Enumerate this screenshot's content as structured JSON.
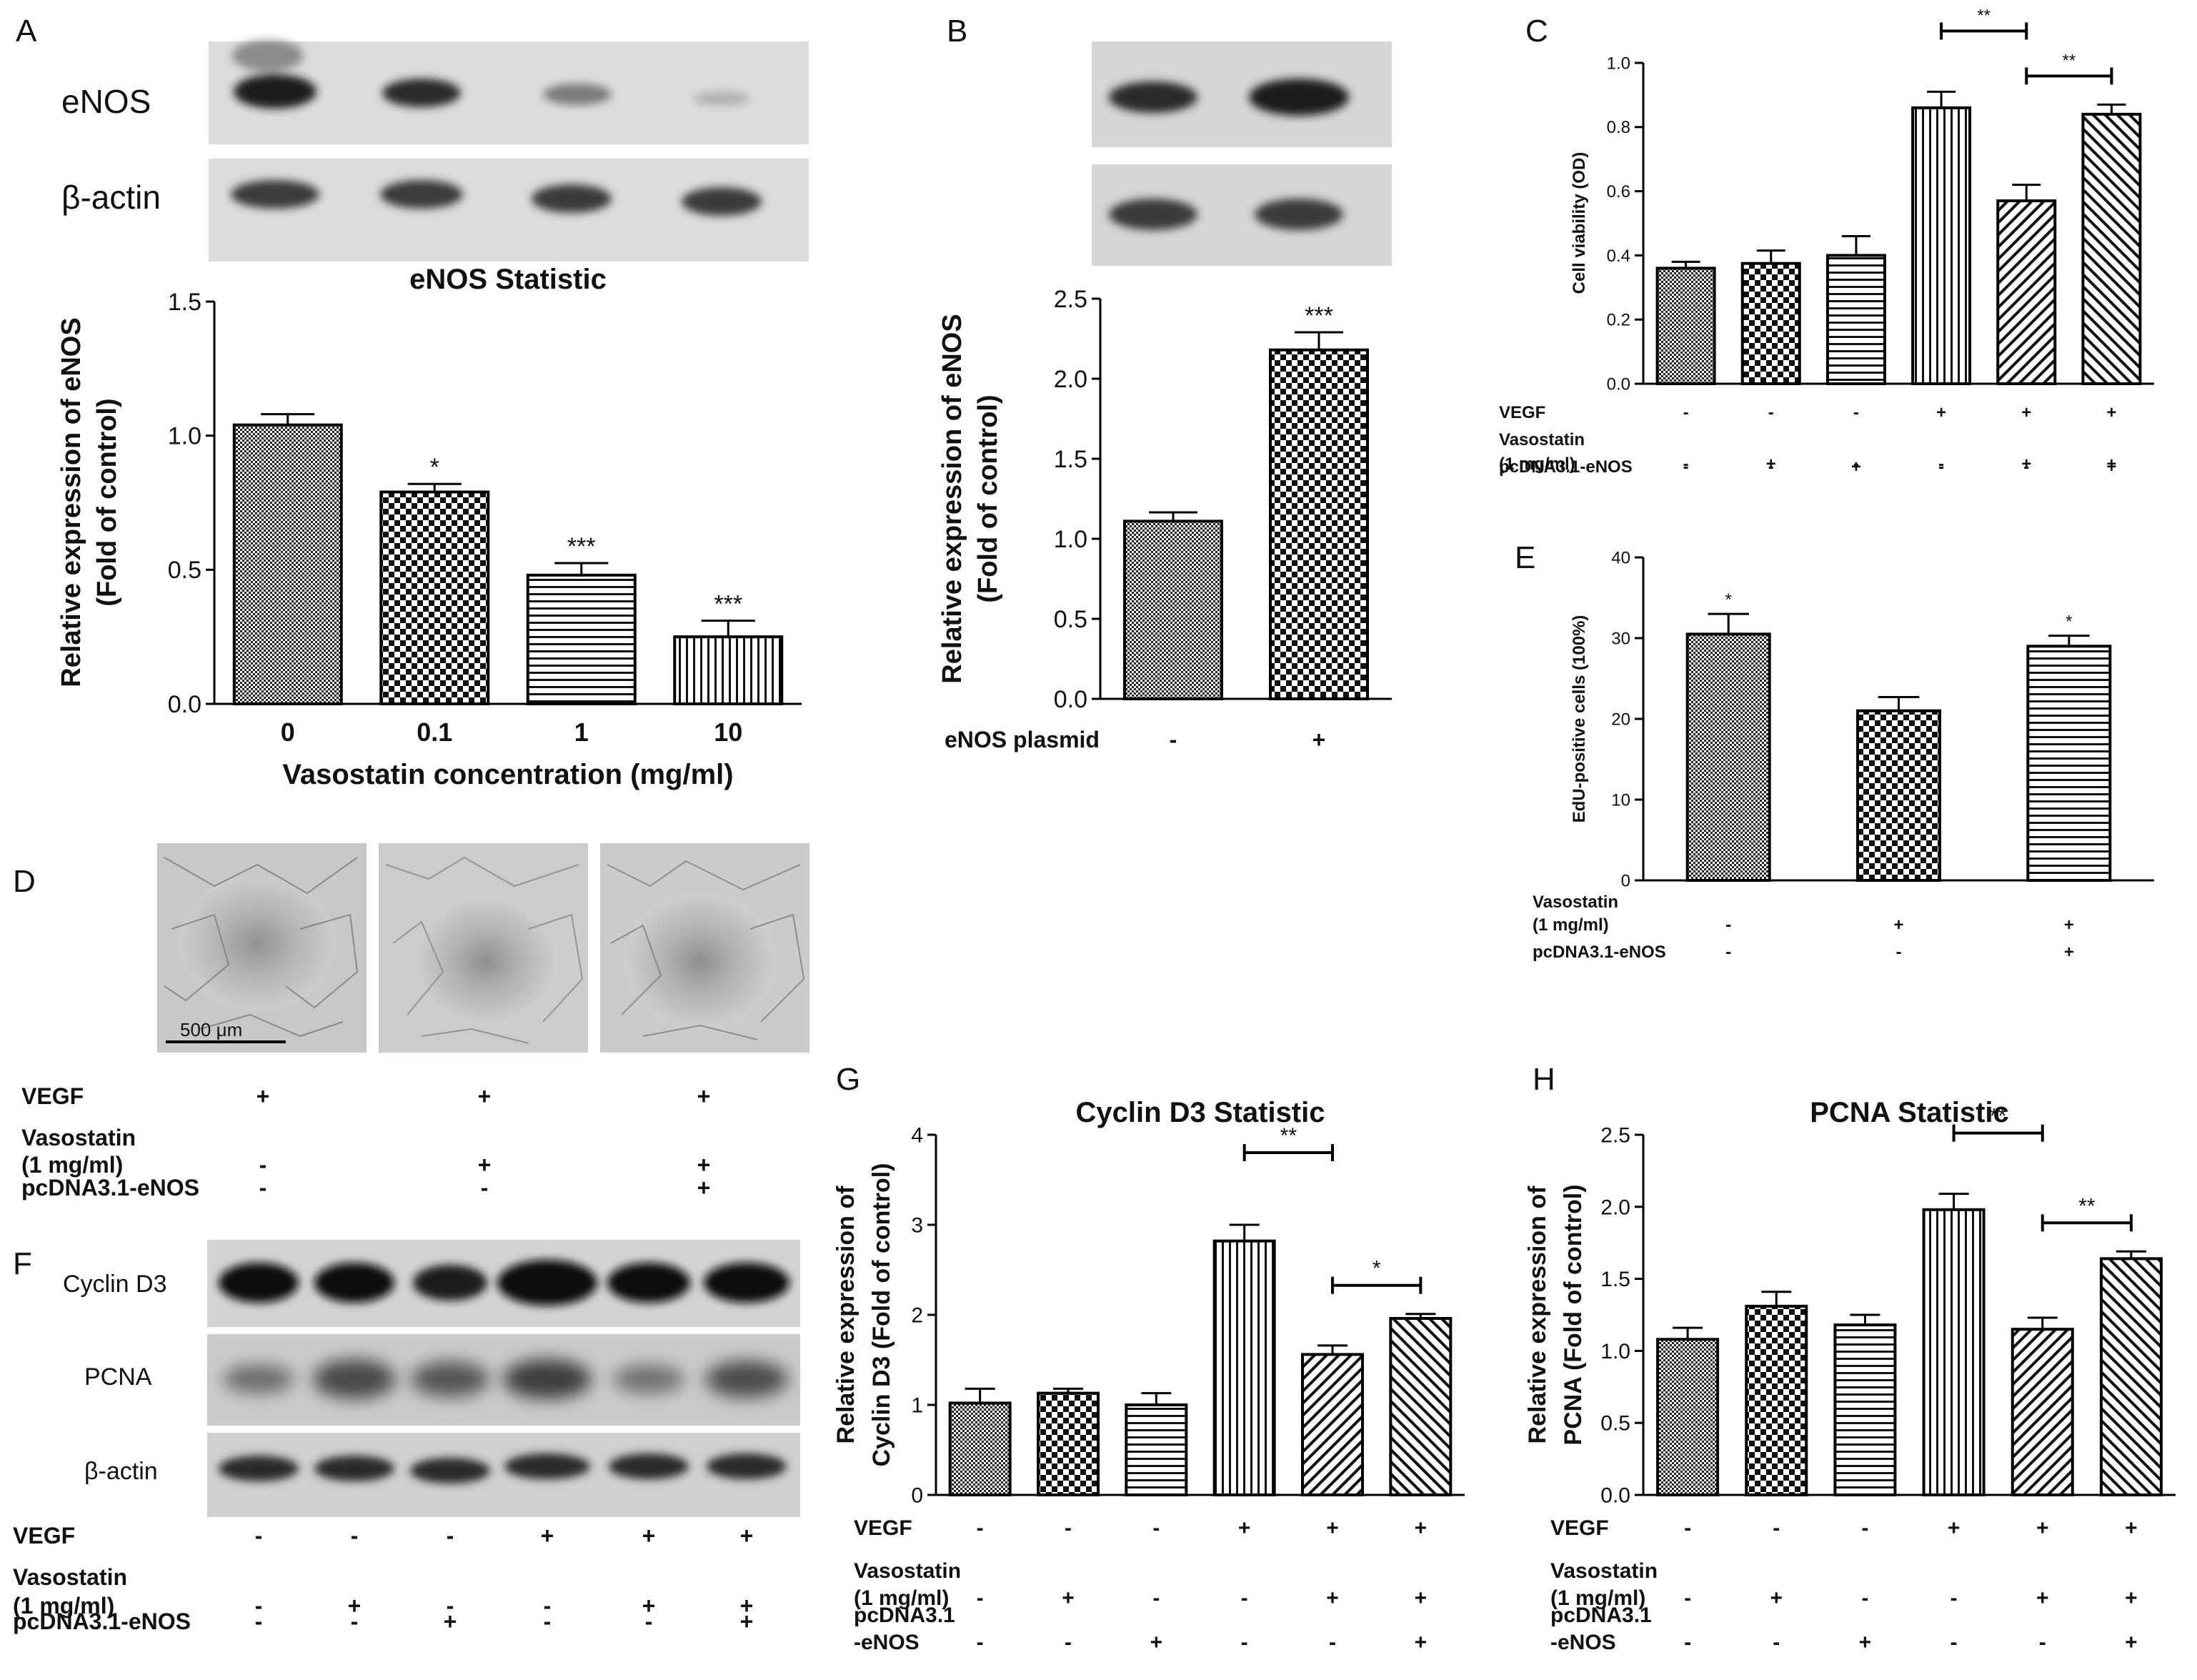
{
  "panels": {
    "A": {
      "letter": "A",
      "blot_labels": [
        "eNOS",
        "β-actin"
      ],
      "chart": {
        "type": "bar",
        "title": "eNOS Statistic",
        "ylabel": "Relative expression of eNOS",
        "ylabel2": "(Fold of control)",
        "xlabel": "Vasostatin concentration (mg/ml)",
        "categories": [
          "0",
          "0.1",
          "1",
          "10"
        ],
        "values": [
          1.04,
          0.79,
          0.48,
          0.25
        ],
        "errors": [
          0.04,
          0.03,
          0.045,
          0.06
        ],
        "sig": [
          "",
          "*",
          "***",
          "***"
        ],
        "ylim": [
          0,
          1.5
        ],
        "yticks": [
          "0.0",
          "0.5",
          "1.0",
          "1.5"
        ],
        "patterns": [
          "fine-dots",
          "checker",
          "hstripe",
          "vstripe"
        ]
      }
    },
    "B": {
      "letter": "B",
      "chart": {
        "type": "bar",
        "ylabel": "Relative expression of eNOS",
        "ylabel2": "(Fold of control)",
        "row_label": "eNOS plasmid",
        "categories": [
          "-",
          "+"
        ],
        "values": [
          1.11,
          2.18
        ],
        "errors": [
          0.055,
          0.11
        ],
        "sig": [
          "",
          "***"
        ],
        "ylim": [
          0,
          2.5
        ],
        "yticks": [
          "0.0",
          "0.5",
          "1.0",
          "1.5",
          "2.0",
          "2.5"
        ],
        "patterns": [
          "fine-dots",
          "checker"
        ]
      }
    },
    "C": {
      "letter": "C",
      "chart": {
        "type": "bar",
        "ylabel": "Cell viability (OD)",
        "values": [
          0.36,
          0.375,
          0.4,
          0.86,
          0.57,
          0.84
        ],
        "errors": [
          0.02,
          0.04,
          0.06,
          0.05,
          0.05,
          0.03
        ],
        "ylim": [
          0,
          1.0
        ],
        "yticks": [
          "0.0",
          "0.2",
          "0.4",
          "0.6",
          "0.8",
          "1.0"
        ],
        "brackets": [
          {
            "from": 3,
            "to": 4,
            "label": "**"
          },
          {
            "from": 4,
            "to": 5,
            "label": "**"
          }
        ],
        "conditions": [
          {
            "label": "VEGF",
            "signs": [
              "-",
              "-",
              "-",
              "+",
              "+",
              "+"
            ]
          },
          {
            "label": "Vasostatin",
            "label2": "(1 mg/ml)",
            "signs": [
              "-",
              "+",
              "-",
              "-",
              "+",
              "+"
            ]
          },
          {
            "label": "pcDNA3.1-eNOS",
            "signs": [
              "-",
              "-",
              "+",
              "-",
              "-",
              "+"
            ]
          }
        ],
        "patterns": [
          "fine-dots",
          "checker",
          "hstripe",
          "vstripe",
          "diag-up",
          "diag-down"
        ]
      }
    },
    "D": {
      "letter": "D",
      "scale_bar": "500 μm",
      "conditions": [
        {
          "label": "VEGF",
          "signs": [
            "+",
            "+",
            "+"
          ]
        },
        {
          "label": "Vasostatin",
          "label2": "(1 mg/ml)",
          "signs": [
            "-",
            "+",
            "+"
          ]
        },
        {
          "label": "pcDNA3.1-eNOS",
          "signs": [
            "-",
            "-",
            "+"
          ]
        }
      ]
    },
    "E": {
      "letter": "E",
      "chart": {
        "type": "bar",
        "ylabel": "EdU-positive cells (100%)",
        "values": [
          30.5,
          21.0,
          29.0
        ],
        "errors": [
          2.5,
          1.7,
          1.3
        ],
        "sig": [
          "*",
          "",
          "*"
        ],
        "ylim": [
          0,
          40
        ],
        "yticks": [
          "0",
          "10",
          "20",
          "30",
          "40"
        ],
        "conditions": [
          {
            "label": "Vasostatin",
            "label2": "(1 mg/ml)",
            "signs": [
              "-",
              "+",
              "+"
            ]
          },
          {
            "label": "pcDNA3.1-eNOS",
            "signs": [
              "-",
              "-",
              "+"
            ]
          }
        ],
        "patterns": [
          "fine-dots",
          "checker",
          "hstripe"
        ]
      }
    },
    "F": {
      "letter": "F",
      "blot_labels": [
        "Cyclin D3",
        "PCNA",
        "β-actin"
      ],
      "conditions": [
        {
          "label": "VEGF",
          "signs": [
            "-",
            "-",
            "-",
            "+",
            "+",
            "+"
          ]
        },
        {
          "label": "Vasostatin",
          "label2": "(1 mg/ml)",
          "signs": [
            "-",
            "+",
            "-",
            "-",
            "+",
            "+"
          ]
        },
        {
          "label": "pcDNA3.1-eNOS",
          "signs": [
            "-",
            "-",
            "+",
            "-",
            "-",
            "+"
          ]
        }
      ]
    },
    "G": {
      "letter": "G",
      "chart": {
        "type": "bar",
        "title": "Cyclin D3 Statistic",
        "ylabel": "Relative expression of",
        "ylabel2": "Cyclin D3 (Fold of control)",
        "values": [
          1.02,
          1.13,
          1.0,
          2.82,
          1.56,
          1.96
        ],
        "errors": [
          0.16,
          0.05,
          0.13,
          0.18,
          0.1,
          0.05
        ],
        "ylim": [
          0,
          4
        ],
        "yticks": [
          "0",
          "1",
          "2",
          "3",
          "4"
        ],
        "brackets": [
          {
            "from": 3,
            "to": 4,
            "label": "**"
          },
          {
            "from": 4,
            "to": 5,
            "label": "*"
          }
        ],
        "conditions": [
          {
            "label": "VEGF",
            "signs": [
              "-",
              "-",
              "-",
              "+",
              "+",
              "+"
            ]
          },
          {
            "label": "Vasostatin",
            "label2": "(1 mg/ml)",
            "signs": [
              "-",
              "+",
              "-",
              "-",
              "+",
              "+"
            ]
          },
          {
            "label": "pcDNA3.1",
            "label2": "-eNOS",
            "signs": [
              "-",
              "-",
              "+",
              "-",
              "-",
              "+"
            ]
          }
        ],
        "patterns": [
          "fine-dots",
          "checker",
          "hstripe",
          "vstripe",
          "diag-up",
          "diag-down"
        ]
      }
    },
    "H": {
      "letter": "H",
      "chart": {
        "type": "bar",
        "title": "PCNA Statistic",
        "ylabel": "Relative expression of",
        "ylabel2": "PCNA (Fold of control)",
        "values": [
          1.08,
          1.31,
          1.18,
          1.98,
          1.15,
          1.64
        ],
        "errors": [
          0.08,
          0.1,
          0.07,
          0.11,
          0.08,
          0.05
        ],
        "ylim": [
          0,
          2.5
        ],
        "yticks": [
          "0.0",
          "0.5",
          "1.0",
          "1.5",
          "2.0",
          "2.5"
        ],
        "brackets": [
          {
            "from": 3,
            "to": 4,
            "label": "**"
          },
          {
            "from": 4,
            "to": 5,
            "label": "**"
          }
        ],
        "conditions": [
          {
            "label": "VEGF",
            "signs": [
              "-",
              "-",
              "-",
              "+",
              "+",
              "+"
            ]
          },
          {
            "label": "Vasostatin",
            "label2": "(1 mg/ml)",
            "signs": [
              "-",
              "+",
              "-",
              "-",
              "+",
              "+"
            ]
          },
          {
            "label": "pcDNA3.1",
            "label2": "-eNOS",
            "signs": [
              "-",
              "-",
              "+",
              "-",
              "-",
              "+"
            ]
          }
        ],
        "patterns": [
          "fine-dots",
          "checker",
          "hstripe",
          "vstripe",
          "diag-up",
          "diag-down"
        ]
      }
    }
  },
  "chart_data": [
    {
      "panel": "A",
      "type": "bar",
      "title": "eNOS Statistic",
      "xlabel": "Vasostatin concentration (mg/ml)",
      "ylabel": "Relative expression of eNOS (Fold of control)",
      "categories": [
        "0",
        "0.1",
        "1",
        "10"
      ],
      "values": [
        1.04,
        0.79,
        0.48,
        0.25
      ],
      "ylim": [
        0,
        1.5
      ]
    },
    {
      "panel": "B",
      "type": "bar",
      "xlabel": "eNOS plasmid",
      "ylabel": "Relative expression of eNOS (Fold of control)",
      "categories": [
        "-",
        "+"
      ],
      "values": [
        1.11,
        2.18
      ],
      "ylim": [
        0,
        2.5
      ]
    },
    {
      "panel": "C",
      "type": "bar",
      "ylabel": "Cell viability (OD)",
      "values": [
        0.36,
        0.375,
        0.4,
        0.86,
        0.57,
        0.84
      ],
      "ylim": [
        0,
        1.0
      ]
    },
    {
      "panel": "E",
      "type": "bar",
      "ylabel": "EdU-positive cells (100%)",
      "values": [
        30.5,
        21.0,
        29.0
      ],
      "ylim": [
        0,
        40
      ]
    },
    {
      "panel": "G",
      "type": "bar",
      "title": "Cyclin D3 Statistic",
      "ylabel": "Relative expression of Cyclin D3 (Fold of control)",
      "values": [
        1.02,
        1.13,
        1.0,
        2.82,
        1.56,
        1.96
      ],
      "ylim": [
        0,
        4
      ]
    },
    {
      "panel": "H",
      "type": "bar",
      "title": "PCNA Statistic",
      "ylabel": "Relative expression of PCNA (Fold of control)",
      "values": [
        1.08,
        1.31,
        1.18,
        1.98,
        1.15,
        1.64
      ],
      "ylim": [
        0,
        2.5
      ]
    }
  ]
}
